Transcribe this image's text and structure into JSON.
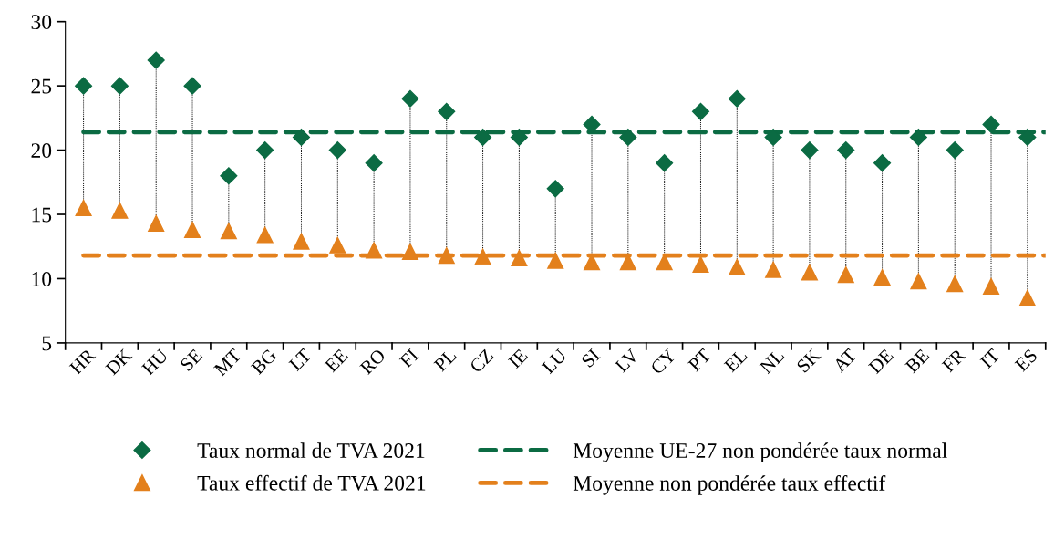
{
  "chart_data": {
    "type": "scatter",
    "categories": [
      "HR",
      "DK",
      "HU",
      "SE",
      "MT",
      "BG",
      "LT",
      "EE",
      "RO",
      "FI",
      "PL",
      "CZ",
      "IE",
      "LU",
      "SI",
      "LV",
      "CY",
      "PT",
      "EL",
      "NL",
      "SK",
      "AT",
      "DE",
      "BE",
      "FR",
      "IT",
      "ES"
    ],
    "series": [
      {
        "name": "Taux normal de TVA 2021",
        "color": "#0b6b43",
        "marker": "diamond",
        "values": [
          25,
          25,
          27,
          25,
          18,
          20,
          21,
          20,
          19,
          24,
          23,
          21,
          21,
          17,
          22,
          21,
          19,
          23,
          24,
          21,
          20,
          20,
          19,
          21,
          20,
          22,
          21
        ]
      },
      {
        "name": "Taux effectif de TVA 2021",
        "color": "#e3801c",
        "marker": "triangle",
        "values": [
          15.5,
          15.3,
          14.3,
          13.8,
          13.7,
          13.4,
          12.9,
          12.6,
          12.2,
          12.1,
          11.8,
          11.7,
          11.6,
          11.4,
          11.3,
          11.3,
          11.3,
          11.1,
          10.9,
          10.7,
          10.5,
          10.3,
          10.1,
          9.8,
          9.6,
          9.4,
          8.5
        ]
      }
    ],
    "ref_lines": [
      {
        "axis": "y",
        "value": 21.4,
        "label": "Moyenne UE-27 non pondérée taux normal",
        "color": "#0b6b43",
        "line_style": "dashed"
      },
      {
        "axis": "y",
        "value": 11.8,
        "label": "Moyenne non pondérée taux effectif",
        "color": "#e3801c",
        "line_style": "dashed"
      }
    ],
    "ylim": [
      5,
      30
    ],
    "yticks": [
      5,
      10,
      15,
      20,
      25,
      30
    ],
    "grid": false,
    "legend": "bottom"
  }
}
